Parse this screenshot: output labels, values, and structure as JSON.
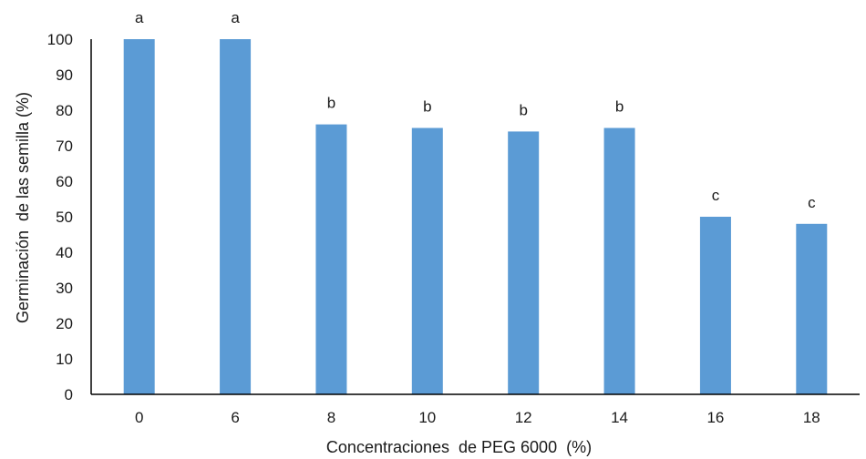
{
  "chart_data": {
    "type": "bar",
    "categories": [
      "0",
      "6",
      "8",
      "10",
      "12",
      "14",
      "16",
      "18"
    ],
    "values": [
      100,
      100,
      76,
      75,
      74,
      75,
      50,
      48
    ],
    "annotations": [
      "a",
      "a",
      "b",
      "b",
      "b",
      "b",
      "c",
      "c"
    ],
    "xlabel": "Concentraciones  de PEG 6000  (%)",
    "ylabel": "Germinación  de las semilla (%)",
    "ylim": [
      0,
      100
    ],
    "yticks": [
      0,
      10,
      20,
      30,
      40,
      50,
      60,
      70,
      80,
      90,
      100
    ],
    "grid": false,
    "bar_color": "#5b9bd5",
    "axis_color": "#000000"
  }
}
